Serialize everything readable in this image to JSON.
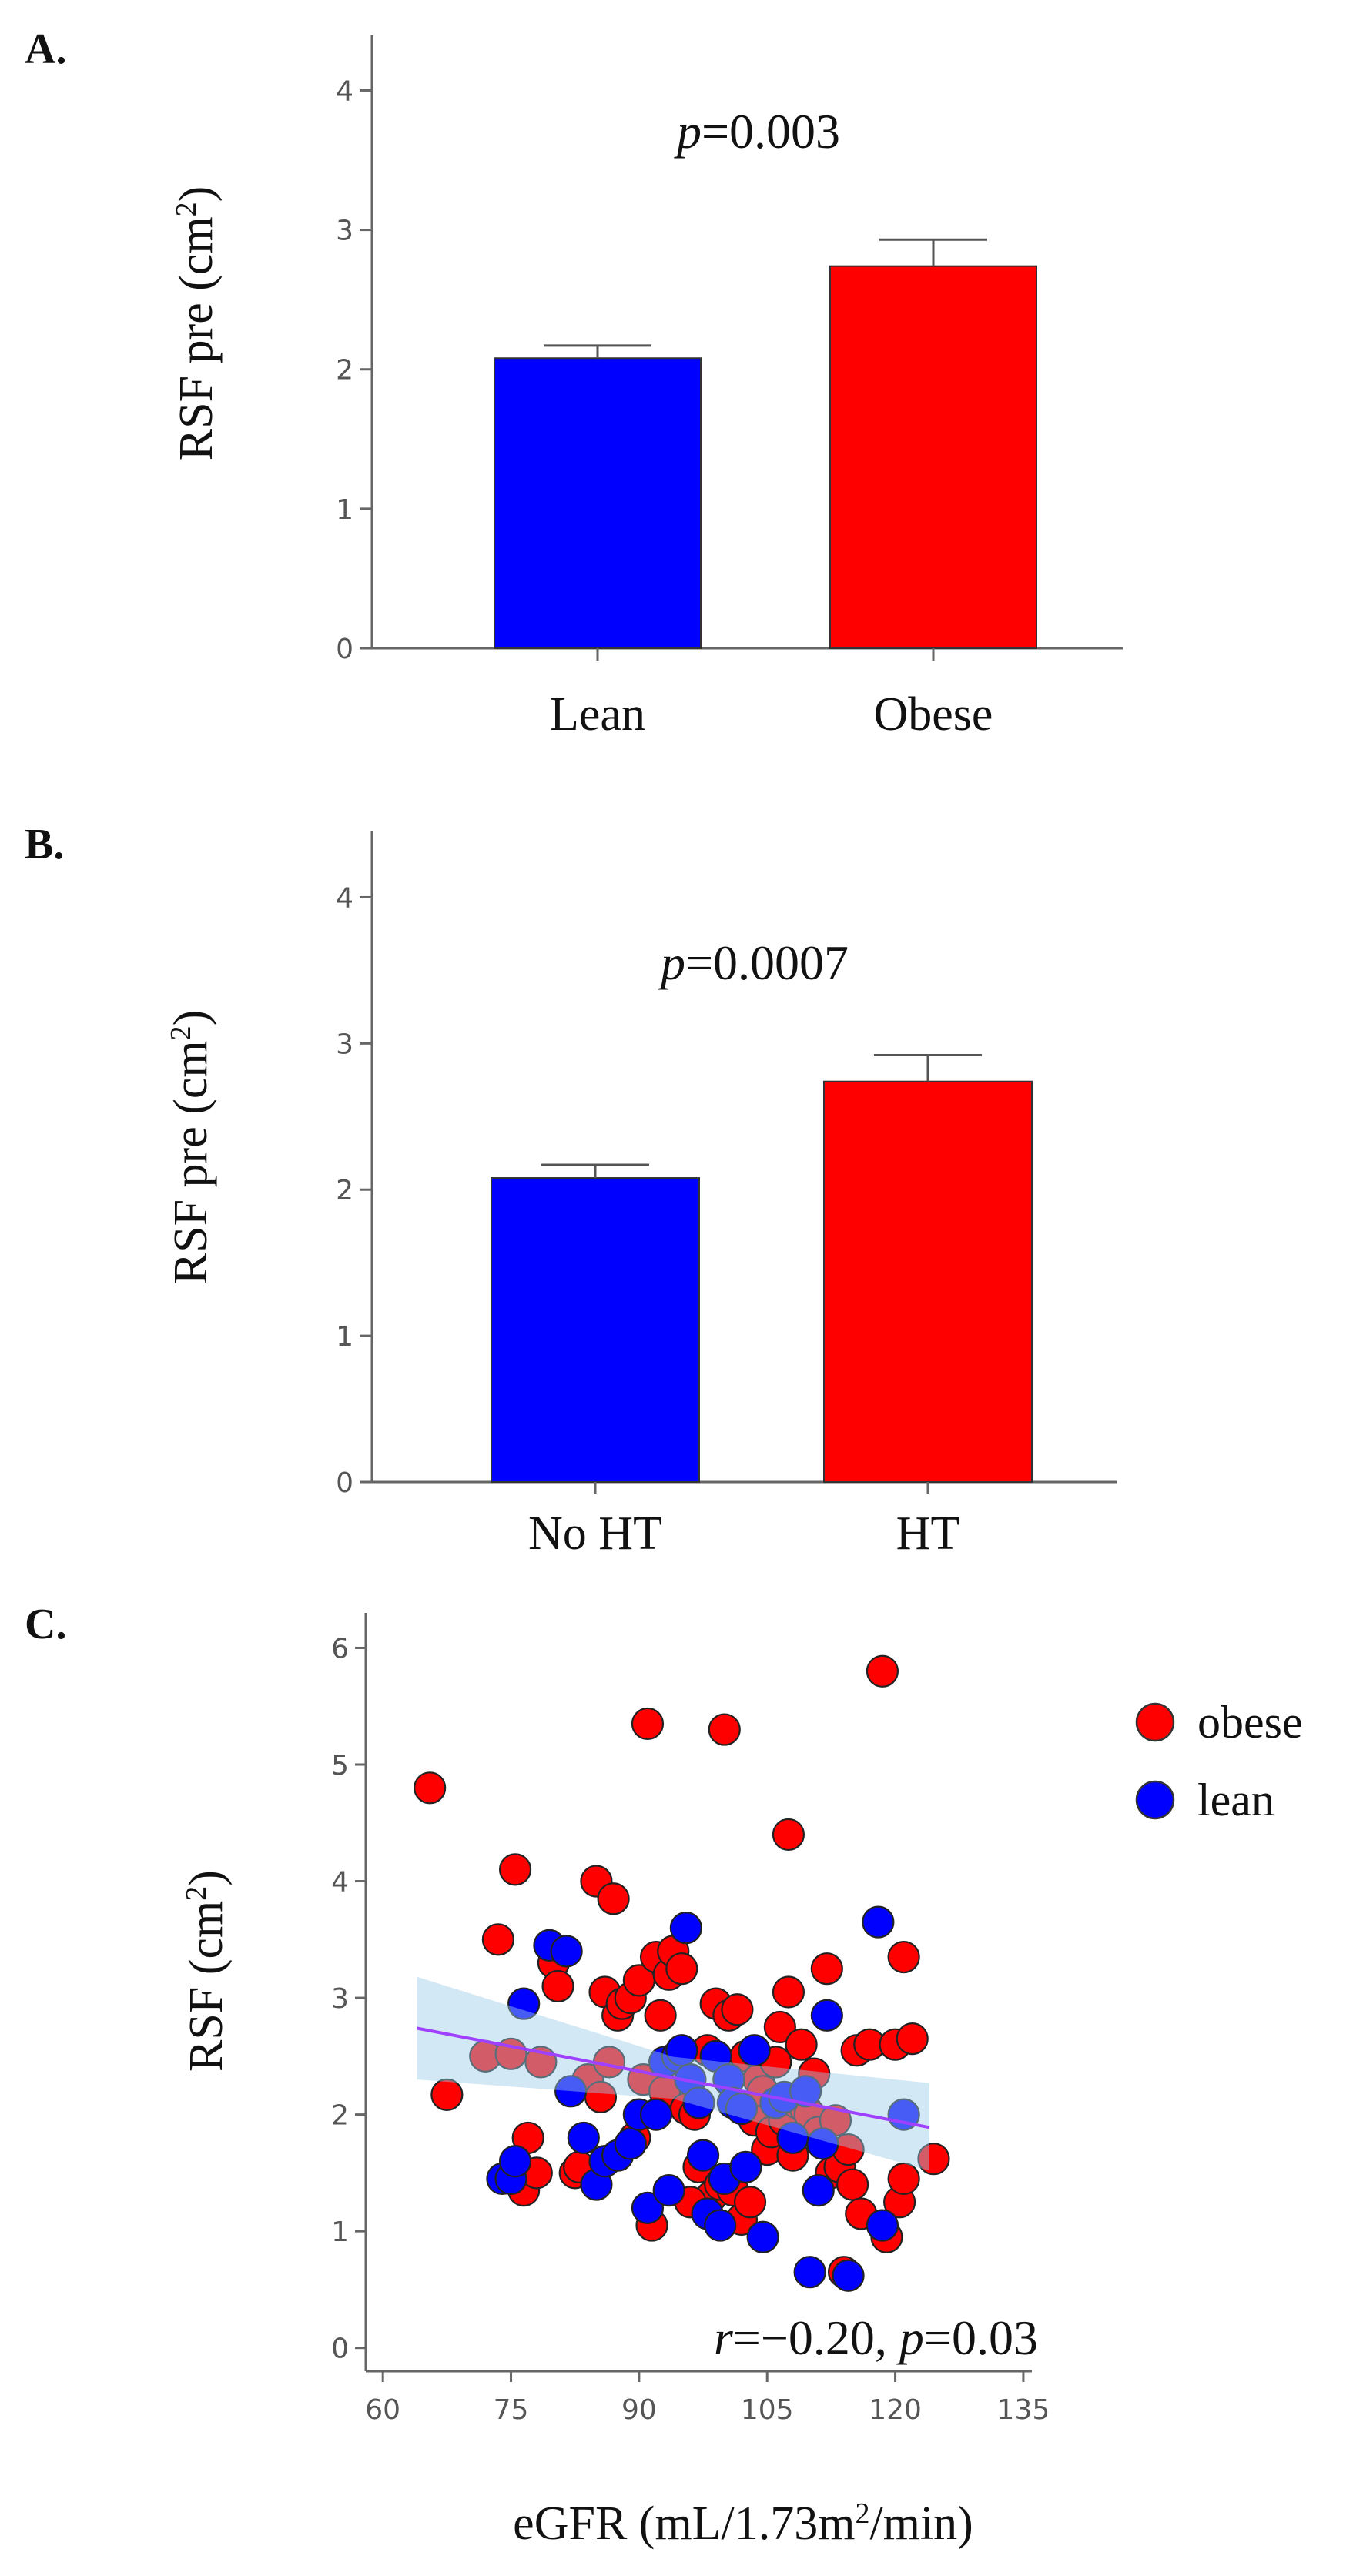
{
  "chart_data": [
    {
      "type": "bar",
      "panel": "A.",
      "categories": [
        "Lean",
        "Obese"
      ],
      "values": [
        2.08,
        2.74
      ],
      "errors": [
        0.09,
        0.19
      ],
      "colors": [
        "#0000ff",
        "#ff0000"
      ],
      "ylabel_main": "RSF pre (cm",
      "ylabel_sup": "2",
      "ylabel_end": ")",
      "ylim": [
        0,
        4.4
      ],
      "yticks": [
        "0",
        "1",
        "2",
        "3",
        "4"
      ],
      "p_label": "p",
      "p_value": "=0.003"
    },
    {
      "type": "bar",
      "panel": "B.",
      "categories": [
        "No HT",
        "HT"
      ],
      "values": [
        2.08,
        2.74
      ],
      "errors": [
        0.09,
        0.18
      ],
      "colors": [
        "#0000ff",
        "#ff0000"
      ],
      "ylabel_main": "RSF pre (cm",
      "ylabel_sup": "2",
      "ylabel_end": ")",
      "ylim": [
        0,
        4.45
      ],
      "yticks": [
        "0",
        "1",
        "2",
        "3",
        "4"
      ],
      "p_label": "p",
      "p_value": "=0.0007"
    },
    {
      "type": "scatter",
      "panel": "C.",
      "xlabel_main": "eGFR (mL/1.73m",
      "xlabel_sup": "2",
      "xlabel_end": "/min)",
      "ylabel_main": "RSF (cm",
      "ylabel_sup": "2",
      "ylabel_end": ")",
      "xlim": [
        58,
        136
      ],
      "ylim": [
        -0.2,
        6.3
      ],
      "xticks": [
        "60",
        "75",
        "90",
        "105",
        "120",
        "135"
      ],
      "yticks": [
        "0",
        "1",
        "2",
        "3",
        "4",
        "5",
        "6"
      ],
      "legend": [
        {
          "name": "obese",
          "color": "#ff0000"
        },
        {
          "name": "lean",
          "color": "#0000ff"
        }
      ],
      "annotation_r": "r",
      "annotation_r_value": "=−0.20, ",
      "annotation_p": "p",
      "annotation_p_value": "=0.03",
      "regression": {
        "x0": 64,
        "y0": 2.74,
        "x1": 124,
        "y1": 1.89,
        "ci_lower_start": 2.3,
        "ci_upper_start": 3.18,
        "ci_lower_end": 1.52,
        "ci_upper_end": 2.27
      },
      "series": [
        {
          "name": "obese",
          "color": "#ff0000",
          "points": [
            [
              65.5,
              4.8
            ],
            [
              67.5,
              2.17
            ],
            [
              72,
              2.5
            ],
            [
              73.5,
              3.5
            ],
            [
              75,
              2.52
            ],
            [
              75.5,
              4.1
            ],
            [
              76.5,
              1.35
            ],
            [
              77,
              1.8
            ],
            [
              78.5,
              2.45
            ],
            [
              80,
              3.3
            ],
            [
              80.5,
              3.1
            ],
            [
              82.5,
              1.5
            ],
            [
              84,
              2.3
            ],
            [
              85,
              4.0
            ],
            [
              85.5,
              2.15
            ],
            [
              86,
              3.05
            ],
            [
              86.5,
              2.45
            ],
            [
              87,
              3.85
            ],
            [
              87.5,
              2.85
            ],
            [
              88,
              2.95
            ],
            [
              89,
              3.0
            ],
            [
              89.5,
              1.8
            ],
            [
              90,
              3.15
            ],
            [
              90.5,
              2.3
            ],
            [
              91,
              5.35
            ],
            [
              91.5,
              1.05
            ],
            [
              92,
              3.35
            ],
            [
              92.5,
              2.85
            ],
            [
              93,
              2.2
            ],
            [
              93.5,
              3.2
            ],
            [
              94,
              3.4
            ],
            [
              95,
              3.25
            ],
            [
              95.5,
              2.05
            ],
            [
              96.5,
              2.0
            ],
            [
              97,
              1.55
            ],
            [
              98,
              2.55
            ],
            [
              98.5,
              1.3
            ],
            [
              99,
              2.95
            ],
            [
              99.5,
              1.4
            ],
            [
              100,
              5.3
            ],
            [
              100.5,
              2.85
            ],
            [
              101,
              1.35
            ],
            [
              101.5,
              2.9
            ],
            [
              102,
              1.1
            ],
            [
              102.5,
              2.5
            ],
            [
              103,
              1.25
            ],
            [
              103.5,
              1.95
            ],
            [
              104,
              2.3
            ],
            [
              104.5,
              2.2
            ],
            [
              105,
              1.7
            ],
            [
              105.5,
              1.85
            ],
            [
              106,
              2.45
            ],
            [
              106.5,
              2.75
            ],
            [
              107,
              1.95
            ],
            [
              107.5,
              3.05
            ],
            [
              107.5,
              4.4
            ],
            [
              108,
              1.65
            ],
            [
              108.5,
              2.1
            ],
            [
              109,
              2.6
            ],
            [
              109.5,
              2.05
            ],
            [
              110,
              2.0
            ],
            [
              111,
              1.85
            ],
            [
              112,
              3.25
            ],
            [
              112.5,
              1.5
            ],
            [
              113,
              1.95
            ],
            [
              113.5,
              1.55
            ],
            [
              114,
              0.65
            ],
            [
              114.5,
              1.7
            ],
            [
              115,
              1.4
            ],
            [
              115.5,
              2.55
            ],
            [
              116,
              1.15
            ],
            [
              117,
              2.6
            ],
            [
              118.5,
              5.8
            ],
            [
              119,
              0.95
            ],
            [
              120,
              2.6
            ],
            [
              120.5,
              1.25
            ],
            [
              121,
              1.45
            ],
            [
              121,
              3.35
            ],
            [
              122,
              2.65
            ],
            [
              124.5,
              1.62
            ],
            [
              78,
              1.5
            ],
            [
              83,
              1.55
            ],
            [
              96,
              1.25
            ],
            [
              110.5,
              2.35
            ]
          ]
        },
        {
          "name": "lean",
          "color": "#0000ff",
          "points": [
            [
              74,
              1.45
            ],
            [
              75,
              1.45
            ],
            [
              75.5,
              1.6
            ],
            [
              76.5,
              2.95
            ],
            [
              79.5,
              3.45
            ],
            [
              81.5,
              3.4
            ],
            [
              82,
              2.2
            ],
            [
              83.5,
              1.8
            ],
            [
              85,
              1.4
            ],
            [
              86,
              1.6
            ],
            [
              87.5,
              1.65
            ],
            [
              89,
              1.75
            ],
            [
              90,
              2.0
            ],
            [
              91,
              1.2
            ],
            [
              92,
              2.0
            ],
            [
              93,
              2.45
            ],
            [
              93.5,
              1.35
            ],
            [
              94.5,
              2.5
            ],
            [
              95,
              2.55
            ],
            [
              95.5,
              3.6
            ],
            [
              96,
              2.3
            ],
            [
              97,
              2.1
            ],
            [
              97.5,
              1.65
            ],
            [
              98,
              1.15
            ],
            [
              99,
              2.5
            ],
            [
              99.5,
              1.05
            ],
            [
              100,
              1.45
            ],
            [
              100.5,
              2.3
            ],
            [
              101,
              2.1
            ],
            [
              102,
              2.05
            ],
            [
              102.5,
              1.55
            ],
            [
              103.5,
              2.55
            ],
            [
              104.5,
              0.95
            ],
            [
              106,
              2.1
            ],
            [
              107,
              2.15
            ],
            [
              108,
              1.8
            ],
            [
              109.5,
              2.2
            ],
            [
              110,
              0.65
            ],
            [
              111,
              1.35
            ],
            [
              111.5,
              1.75
            ],
            [
              112,
              2.85
            ],
            [
              114.5,
              0.62
            ],
            [
              118,
              3.65
            ],
            [
              118.5,
              1.05
            ],
            [
              121,
              2.0
            ]
          ]
        }
      ]
    }
  ]
}
